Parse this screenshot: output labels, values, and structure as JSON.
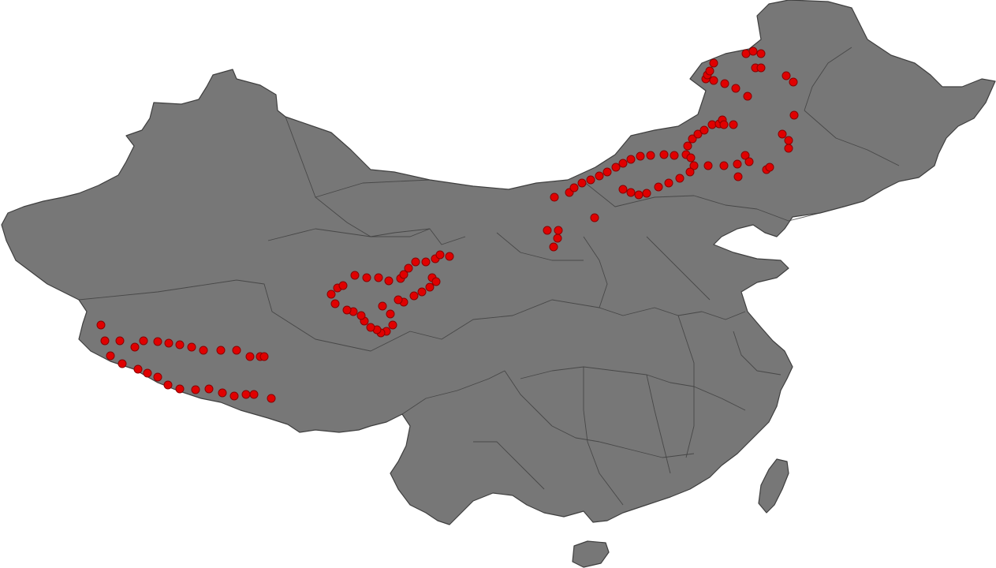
{
  "map": {
    "subject": "China",
    "colors": {
      "land": "#777777",
      "border": "#3f3f3f",
      "background": "#ffffff",
      "marker": "#e00000",
      "marker_stroke": "#8a0000"
    },
    "marker_count": 150,
    "marker_style": "red-dot"
  }
}
